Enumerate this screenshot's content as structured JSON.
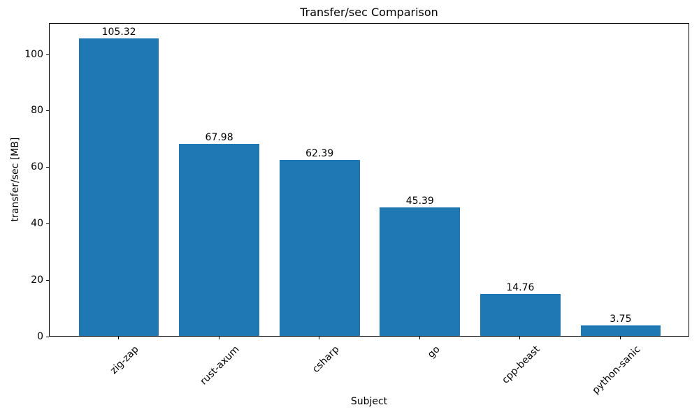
{
  "chart_data": {
    "type": "bar",
    "title": "Transfer/sec Comparison",
    "xlabel": "Subject",
    "ylabel": "transfer/sec [MB]",
    "categories": [
      "zig-zap",
      "rust-axum",
      "csharp",
      "go",
      "cpp-beast",
      "python-sanic"
    ],
    "values": [
      105.32,
      67.98,
      62.39,
      45.39,
      14.76,
      3.75
    ],
    "value_labels": [
      "105.32",
      "67.98",
      "62.39",
      "45.39",
      "14.76",
      "3.75"
    ],
    "yticks": [
      0,
      20,
      40,
      60,
      80,
      100
    ],
    "ylim": [
      0,
      111
    ],
    "x_tick_rotation_deg": 45,
    "grid": false,
    "legend": null,
    "bar_color": "#1f77b4",
    "spine_color": "#000000",
    "text_color": "#000000",
    "background_color": "#ffffff"
  }
}
